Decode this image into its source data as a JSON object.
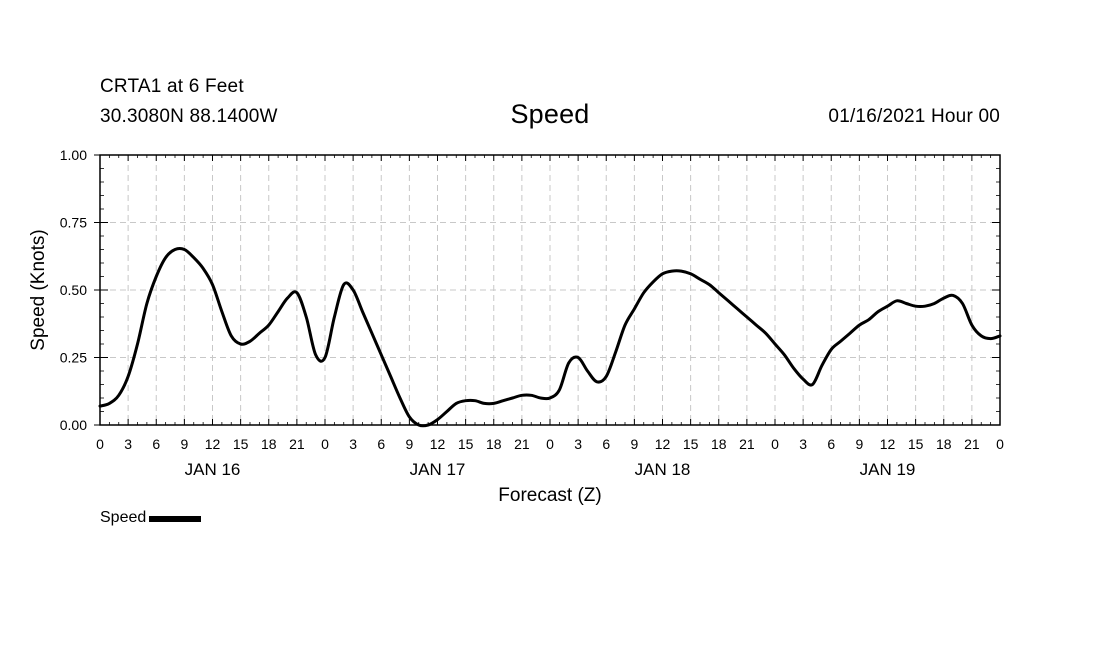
{
  "header": {
    "station": "CRTA1 at 6 Feet",
    "coords": "30.3080N 88.1400W",
    "title": "Speed",
    "date": "01/16/2021 Hour 00"
  },
  "legend": {
    "label": "Speed"
  },
  "colors": {
    "line": "#000000",
    "grid": "#c8c8c8",
    "background": "#ffffff"
  },
  "chart_data": {
    "type": "line",
    "title": "Speed",
    "xlabel": "Forecast (Z)",
    "ylabel": "Speed (Knots)",
    "ylim": [
      0,
      1
    ],
    "yticks": [
      "0.00",
      "0.25",
      "0.50",
      "0.75",
      "1.00"
    ],
    "ytick_values": [
      0,
      0.25,
      0.5,
      0.75,
      1.0
    ],
    "xlim": [
      0,
      96
    ],
    "xtick_hours": [
      0,
      3,
      6,
      9,
      12,
      15,
      18,
      21,
      24,
      27,
      30,
      33,
      36,
      39,
      42,
      45,
      48,
      51,
      54,
      57,
      60,
      63,
      66,
      69,
      72,
      75,
      78,
      81,
      84,
      87,
      90,
      93,
      96
    ],
    "xtick_labels": [
      "0",
      "3",
      "6",
      "9",
      "12",
      "15",
      "18",
      "21",
      "0",
      "3",
      "6",
      "9",
      "12",
      "15",
      "18",
      "21",
      "0",
      "3",
      "6",
      "9",
      "12",
      "15",
      "18",
      "21",
      "0",
      "3",
      "6",
      "9",
      "12",
      "15",
      "18",
      "21",
      "0"
    ],
    "day_labels": [
      {
        "label": "JAN 16",
        "hour": 12
      },
      {
        "label": "JAN 17",
        "hour": 36
      },
      {
        "label": "JAN 18",
        "hour": 60
      },
      {
        "label": "JAN 19",
        "hour": 84
      }
    ],
    "grid": true,
    "legend_position": "bottom-left",
    "series": [
      {
        "name": "Speed",
        "x": [
          0,
          1,
          2,
          3,
          4,
          5,
          6,
          7,
          8,
          9,
          10,
          11,
          12,
          13,
          14,
          15,
          16,
          17,
          18,
          19,
          20,
          21,
          22,
          23,
          24,
          25,
          26,
          27,
          28,
          29,
          30,
          31,
          32,
          33,
          34,
          35,
          36,
          37,
          38,
          39,
          40,
          41,
          42,
          43,
          44,
          45,
          46,
          47,
          48,
          49,
          50,
          51,
          52,
          53,
          54,
          55,
          56,
          57,
          58,
          59,
          60,
          61,
          62,
          63,
          64,
          65,
          66,
          67,
          68,
          69,
          70,
          71,
          72,
          73,
          74,
          75,
          76,
          77,
          78,
          79,
          80,
          81,
          82,
          83,
          84,
          85,
          86,
          87,
          88,
          89,
          90,
          91,
          92,
          93,
          94,
          95,
          96
        ],
        "y": [
          0.07,
          0.08,
          0.11,
          0.18,
          0.3,
          0.45,
          0.55,
          0.62,
          0.65,
          0.65,
          0.62,
          0.58,
          0.52,
          0.42,
          0.33,
          0.3,
          0.31,
          0.34,
          0.37,
          0.42,
          0.47,
          0.49,
          0.4,
          0.26,
          0.25,
          0.4,
          0.52,
          0.5,
          0.42,
          0.34,
          0.26,
          0.18,
          0.1,
          0.03,
          0.0,
          0.0,
          0.02,
          0.05,
          0.08,
          0.09,
          0.09,
          0.08,
          0.08,
          0.09,
          0.1,
          0.11,
          0.11,
          0.1,
          0.1,
          0.13,
          0.23,
          0.25,
          0.2,
          0.16,
          0.18,
          0.27,
          0.37,
          0.43,
          0.49,
          0.53,
          0.56,
          0.57,
          0.57,
          0.56,
          0.54,
          0.52,
          0.49,
          0.46,
          0.43,
          0.4,
          0.37,
          0.34,
          0.3,
          0.26,
          0.21,
          0.17,
          0.15,
          0.22,
          0.28,
          0.31,
          0.34,
          0.37,
          0.39,
          0.42,
          0.44,
          0.46,
          0.45,
          0.44,
          0.44,
          0.45,
          0.47,
          0.48,
          0.45,
          0.37,
          0.33,
          0.32,
          0.33
        ]
      }
    ]
  }
}
